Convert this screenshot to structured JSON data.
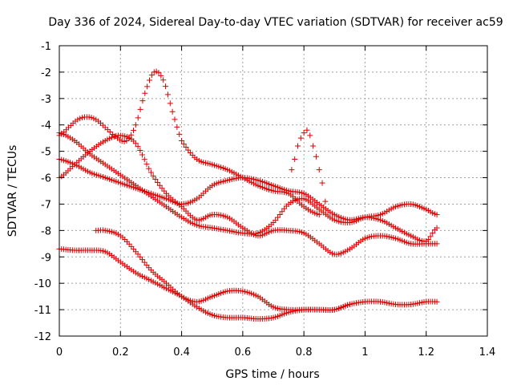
{
  "chart_data": {
    "type": "scatter",
    "title": "Day 336 of 2024, Sidereal Day-to-day VTEC variation (SDTVAR) for receiver ac59",
    "xlabel": "GPS time / hours",
    "ylabel": "SDTVAR / TECUs",
    "xlim": [
      0,
      1.4
    ],
    "ylim": [
      -12,
      -1
    ],
    "xticks": [
      0,
      0.2,
      0.4,
      0.6,
      0.8,
      1,
      1.2,
      1.4
    ],
    "xtick_labels": [
      "0",
      "0.2",
      "0.4",
      "0.6",
      "0.8",
      "1",
      "1.2",
      "1.4"
    ],
    "yticks": [
      -1,
      -2,
      -3,
      -4,
      -5,
      -6,
      -7,
      -8,
      -9,
      -10,
      -11,
      -12
    ],
    "ytick_labels": [
      "-1",
      "-2",
      "-3",
      "-4",
      "-5",
      "-6",
      "-7",
      "-8",
      "-9",
      "-10",
      "-11",
      "-12"
    ],
    "grid": true,
    "marker": "+",
    "color": "#e00000",
    "series": [
      {
        "name": "arc-1",
        "x": [
          0,
          0.05,
          0.1,
          0.15,
          0.2,
          0.25,
          0.3,
          0.35,
          0.4,
          0.45,
          0.5,
          0.55,
          0.6,
          0.65,
          0.7,
          0.75,
          0.8,
          0.85,
          0.9,
          0.95,
          1.0,
          1.05,
          1.1,
          1.15,
          1.2,
          1.235
        ],
        "y": [
          -4.3,
          -4.6,
          -5.1,
          -5.5,
          -5.9,
          -6.3,
          -6.7,
          -7.1,
          -7.5,
          -7.8,
          -7.9,
          -8.0,
          -8.1,
          -8.1,
          -7.7,
          -7.0,
          -6.8,
          -7.2,
          -7.6,
          -7.7,
          -7.5,
          -7.4,
          -7.1,
          -7.0,
          -7.2,
          -7.4
        ]
      },
      {
        "name": "arc-2",
        "x": [
          0,
          0.05,
          0.1,
          0.15,
          0.2,
          0.25,
          0.3,
          0.35,
          0.4,
          0.45,
          0.5,
          0.55,
          0.6,
          0.65,
          0.7,
          0.75,
          0.8,
          0.85,
          0.9,
          0.95,
          1.0,
          1.05,
          1.1,
          1.15,
          1.2,
          1.235
        ],
        "y": [
          -6.0,
          -5.5,
          -5.0,
          -4.6,
          -4.4,
          -4.7,
          -5.8,
          -6.6,
          -7.1,
          -7.6,
          -7.4,
          -7.5,
          -7.9,
          -8.2,
          -8.0,
          -8.0,
          -8.1,
          -8.5,
          -8.9,
          -8.7,
          -8.3,
          -8.2,
          -8.3,
          -8.5,
          -8.5,
          -8.5
        ]
      },
      {
        "name": "arc-3",
        "x": [
          0,
          0.03,
          0.06,
          0.09,
          0.12,
          0.15,
          0.19,
          0.22,
          0.25,
          0.28,
          0.31,
          0.34,
          0.37,
          0.4,
          0.45,
          0.5,
          0.55,
          0.6,
          0.65,
          0.7,
          0.75,
          0.8,
          0.85
        ],
        "y": [
          -4.4,
          -4.1,
          -3.8,
          -3.7,
          -3.8,
          -4.1,
          -4.5,
          -4.6,
          -4.0,
          -2.8,
          -2.0,
          -2.3,
          -3.5,
          -4.6,
          -5.3,
          -5.5,
          -5.7,
          -6.0,
          -6.3,
          -6.5,
          -6.6,
          -7.1,
          -7.4
        ]
      },
      {
        "name": "arc-4",
        "x": [
          0,
          0.05,
          0.1,
          0.15,
          0.2,
          0.25,
          0.3,
          0.35,
          0.4,
          0.45,
          0.5,
          0.55,
          0.6,
          0.65,
          0.7,
          0.75,
          0.8,
          0.85,
          0.9,
          0.95,
          1.0,
          1.05,
          1.1,
          1.15,
          1.2,
          1.235
        ],
        "y": [
          -5.3,
          -5.5,
          -5.8,
          -6.0,
          -6.2,
          -6.4,
          -6.6,
          -6.8,
          -7.0,
          -6.8,
          -6.3,
          -6.1,
          -6.0,
          -6.1,
          -6.3,
          -6.5,
          -6.6,
          -7.0,
          -7.4,
          -7.6,
          -7.5,
          -7.6,
          -7.9,
          -8.2,
          -8.4,
          -7.9
        ]
      },
      {
        "name": "arc-5",
        "x": [
          0,
          0.05,
          0.1,
          0.15,
          0.2,
          0.25,
          0.3,
          0.35,
          0.4,
          0.45,
          0.5,
          0.55,
          0.6,
          0.65,
          0.7,
          0.75,
          0.8,
          0.85,
          0.9,
          0.95
        ],
        "y": [
          -8.7,
          -8.75,
          -8.75,
          -8.8,
          -9.2,
          -9.6,
          -9.9,
          -10.2,
          -10.5,
          -10.9,
          -11.2,
          -11.3,
          -11.3,
          -11.35,
          -11.3,
          -11.1,
          -11.0,
          -11.0,
          -11.0,
          -10.8
        ]
      },
      {
        "name": "arc-6",
        "x": [
          0.12,
          0.15,
          0.2,
          0.25,
          0.3,
          0.35,
          0.4,
          0.45,
          0.5,
          0.55,
          0.6,
          0.65,
          0.7,
          0.75,
          0.8,
          0.85,
          0.9,
          0.95,
          1.0,
          1.05,
          1.1,
          1.15,
          1.2,
          1.235
        ],
        "y": [
          -8.0,
          -8.0,
          -8.2,
          -8.8,
          -9.5,
          -10.0,
          -10.5,
          -10.7,
          -10.5,
          -10.3,
          -10.3,
          -10.5,
          -10.9,
          -11.0,
          -11.0,
          -11.0,
          -11.0,
          -10.8,
          -10.7,
          -10.7,
          -10.8,
          -10.8,
          -10.7,
          -10.7
        ]
      },
      {
        "name": "arc-7",
        "x": [
          0.76,
          0.77,
          0.78,
          0.79,
          0.8,
          0.81,
          0.82,
          0.83,
          0.84,
          0.85,
          0.86,
          0.87
        ],
        "y": [
          -5.7,
          -5.3,
          -4.8,
          -4.5,
          -4.3,
          -4.2,
          -4.4,
          -4.8,
          -5.2,
          -5.7,
          -6.2,
          -6.9
        ]
      }
    ]
  }
}
